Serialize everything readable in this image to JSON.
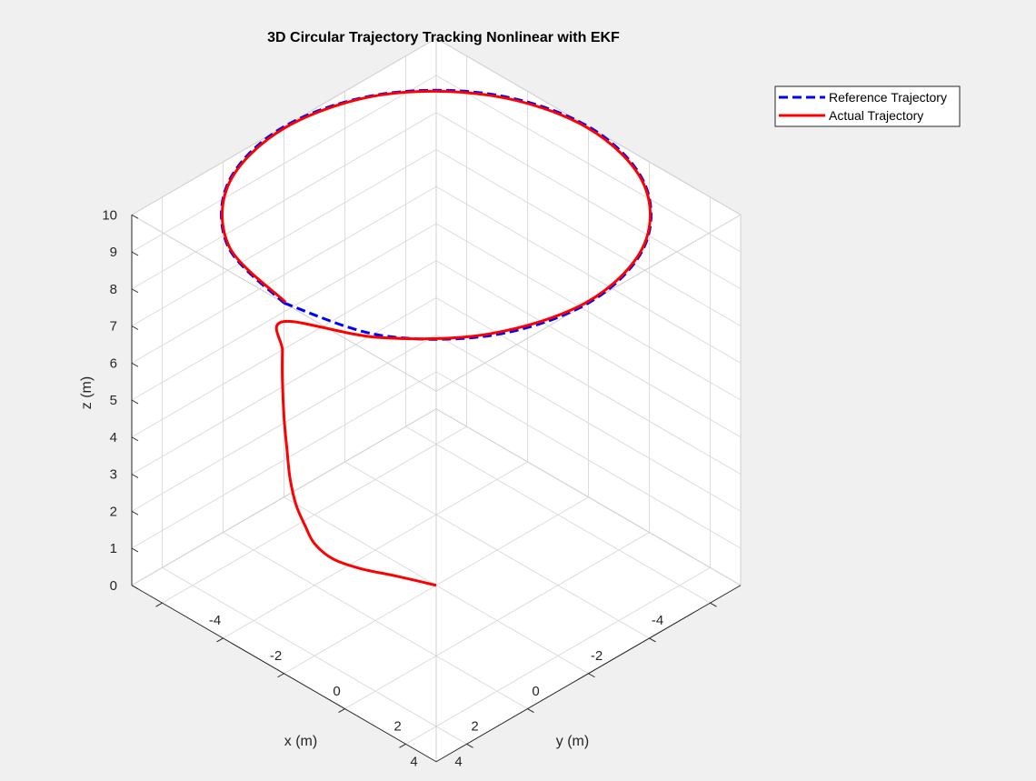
{
  "chart_data": {
    "type": "line",
    "title": "3D Circular Trajectory Tracking Nonlinear with EKF",
    "xlabel": "x (m)",
    "ylabel": "y (m)",
    "zlabel": "z (m)",
    "xlim": [
      -5,
      5
    ],
    "ylim": [
      -5,
      5
    ],
    "zlim": [
      0,
      10
    ],
    "grid": true,
    "box": true,
    "view": "3d-isometric",
    "legend_position": "top-right",
    "x_ticks": [
      "-4",
      "-2",
      "0",
      "2",
      "4"
    ],
    "y_ticks": [
      "-4",
      "-2",
      "0",
      "2",
      "4"
    ],
    "z_ticks": [
      "0",
      "1",
      "2",
      "3",
      "4",
      "5",
      "6",
      "7",
      "8",
      "9",
      "10"
    ],
    "colors": {
      "reference": "#0000ff",
      "actual": "#ff0000",
      "grid": "#dcdcdc",
      "axes": "#262626",
      "background": "#ffffff",
      "figure": "#f0f0f0"
    },
    "series": [
      {
        "name": "Reference Trajectory",
        "style": "dashed",
        "x": [
          5.0,
          4.33,
          2.5,
          0.0,
          -2.5,
          -4.33,
          -5.0,
          -4.33,
          -2.5,
          0.0,
          2.5,
          4.33,
          5.0
        ],
        "y": [
          0.0,
          2.5,
          4.33,
          5.0,
          4.33,
          2.5,
          0.0,
          -2.5,
          -4.33,
          -5.0,
          -4.33,
          -2.5,
          0.0
        ],
        "z": [
          10,
          10,
          10,
          10,
          10,
          10,
          10,
          10,
          10,
          10,
          10,
          10,
          10
        ]
      },
      {
        "name": "Actual Trajectory",
        "style": "solid",
        "x": [
          0.0,
          0.6,
          1.3,
          2.0,
          2.6,
          3.1,
          3.6,
          4.0,
          4.3,
          4.55,
          4.75,
          4.9,
          5.0,
          4.3,
          2.5,
          0.0,
          -2.5,
          -4.3,
          -4.95,
          -4.3,
          -2.5,
          0.0,
          2.5,
          4.3,
          4.95
        ],
        "y": [
          0.0,
          -0.7,
          -1.2,
          -1.4,
          -1.4,
          -1.2,
          -1.0,
          -0.8,
          -0.6,
          -0.45,
          -0.3,
          -0.15,
          0.0,
          2.45,
          4.25,
          4.95,
          4.3,
          2.5,
          0.0,
          -2.45,
          -4.3,
          -4.95,
          -4.3,
          -2.5,
          0.0
        ],
        "z": [
          0.0,
          0.2,
          0.5,
          1.0,
          1.7,
          2.5,
          3.4,
          4.4,
          5.4,
          6.5,
          7.6,
          8.6,
          9.5,
          9.9,
          10.0,
          10.0,
          10.0,
          10.0,
          10.0,
          10.0,
          10.0,
          10.0,
          10.0,
          10.0,
          10.0
        ]
      }
    ]
  }
}
